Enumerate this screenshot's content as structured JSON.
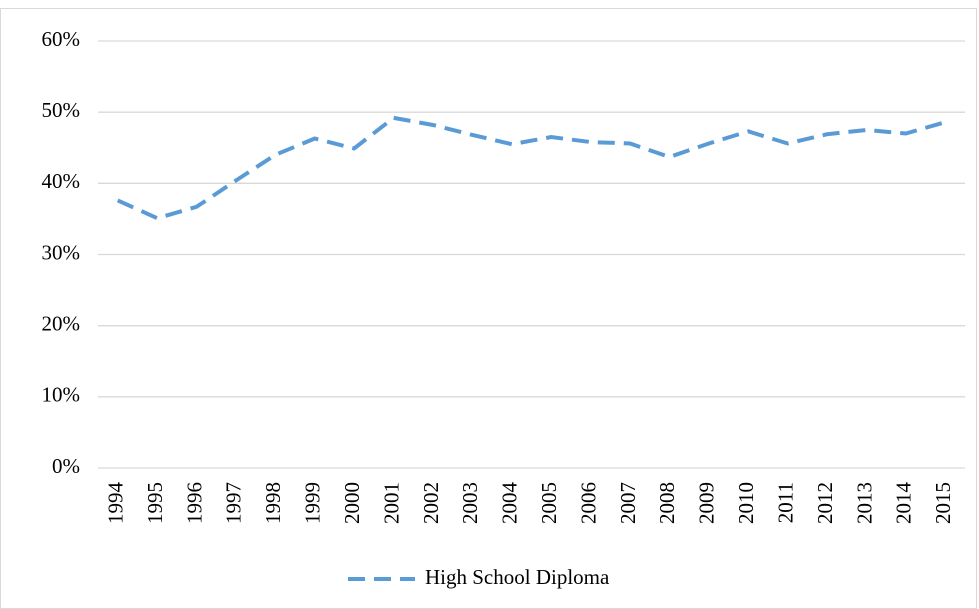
{
  "chart_data": {
    "type": "line",
    "categories": [
      "1994",
      "1995",
      "1996",
      "1997",
      "1998",
      "1999",
      "2000",
      "2001",
      "2002",
      "2003",
      "2004",
      "2005",
      "2006",
      "2007",
      "2008",
      "2009",
      "2010",
      "2011",
      "2012",
      "2013",
      "2014",
      "2015"
    ],
    "series": [
      {
        "name": "High School Diploma",
        "color": "#5b9bd5",
        "dashed": true,
        "values": [
          37.6,
          35.1,
          36.7,
          40.4,
          44.0,
          46.3,
          44.9,
          49.2,
          48.2,
          46.8,
          45.5,
          46.5,
          45.8,
          45.6,
          43.7,
          45.6,
          47.3,
          45.6,
          46.9,
          47.5,
          47.0,
          48.6
        ]
      }
    ],
    "ylim": [
      0,
      60
    ],
    "yticks": [
      {
        "value": 0,
        "label": "0%"
      },
      {
        "value": 10,
        "label": "10%"
      },
      {
        "value": 20,
        "label": "20%"
      },
      {
        "value": 30,
        "label": "30%"
      },
      {
        "value": 40,
        "label": "40%"
      },
      {
        "value": 50,
        "label": "50%"
      },
      {
        "value": 60,
        "label": "60%"
      }
    ],
    "grid": true,
    "legend": "bottom"
  }
}
